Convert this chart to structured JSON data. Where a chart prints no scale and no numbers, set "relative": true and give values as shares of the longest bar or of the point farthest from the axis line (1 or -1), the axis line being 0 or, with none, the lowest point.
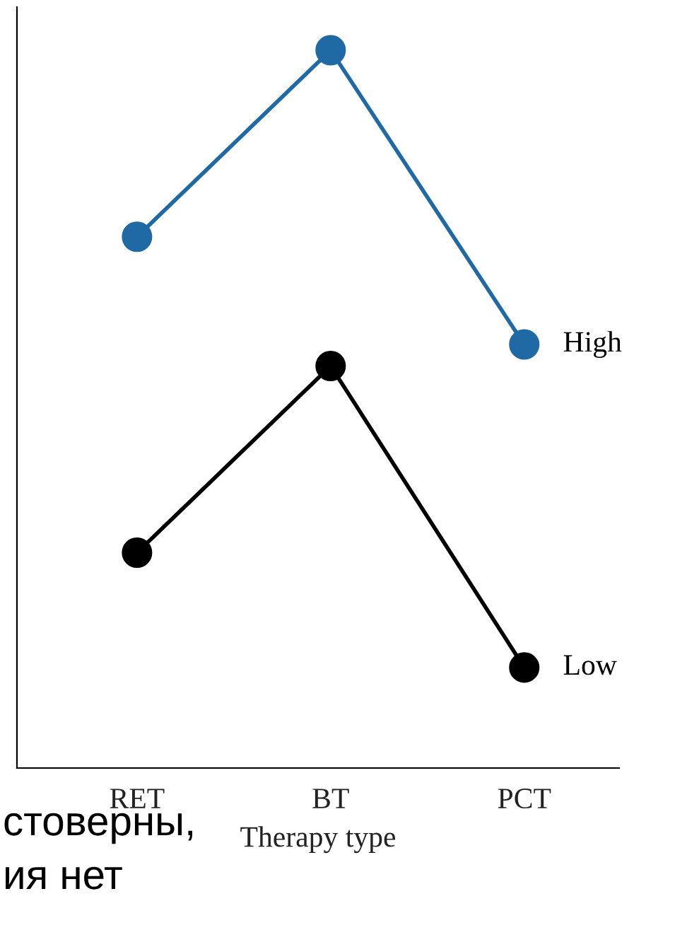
{
  "chart_data": {
    "type": "line",
    "relative": true,
    "xlabel": "Therapy type",
    "categories": [
      "RET",
      "BT",
      "PCT"
    ],
    "marker": "circle",
    "line_style": "solid",
    "grid": false,
    "legend": false,
    "series": [
      {
        "name": "High",
        "color": "#1f6aa5",
        "values": [
          0.74,
          1,
          0.59
        ]
      },
      {
        "name": "Low",
        "color": "#000000",
        "values": [
          0.3,
          0.56,
          0.14
        ]
      }
    ],
    "annotations": [
      "стоверны,",
      "ия нет"
    ]
  }
}
